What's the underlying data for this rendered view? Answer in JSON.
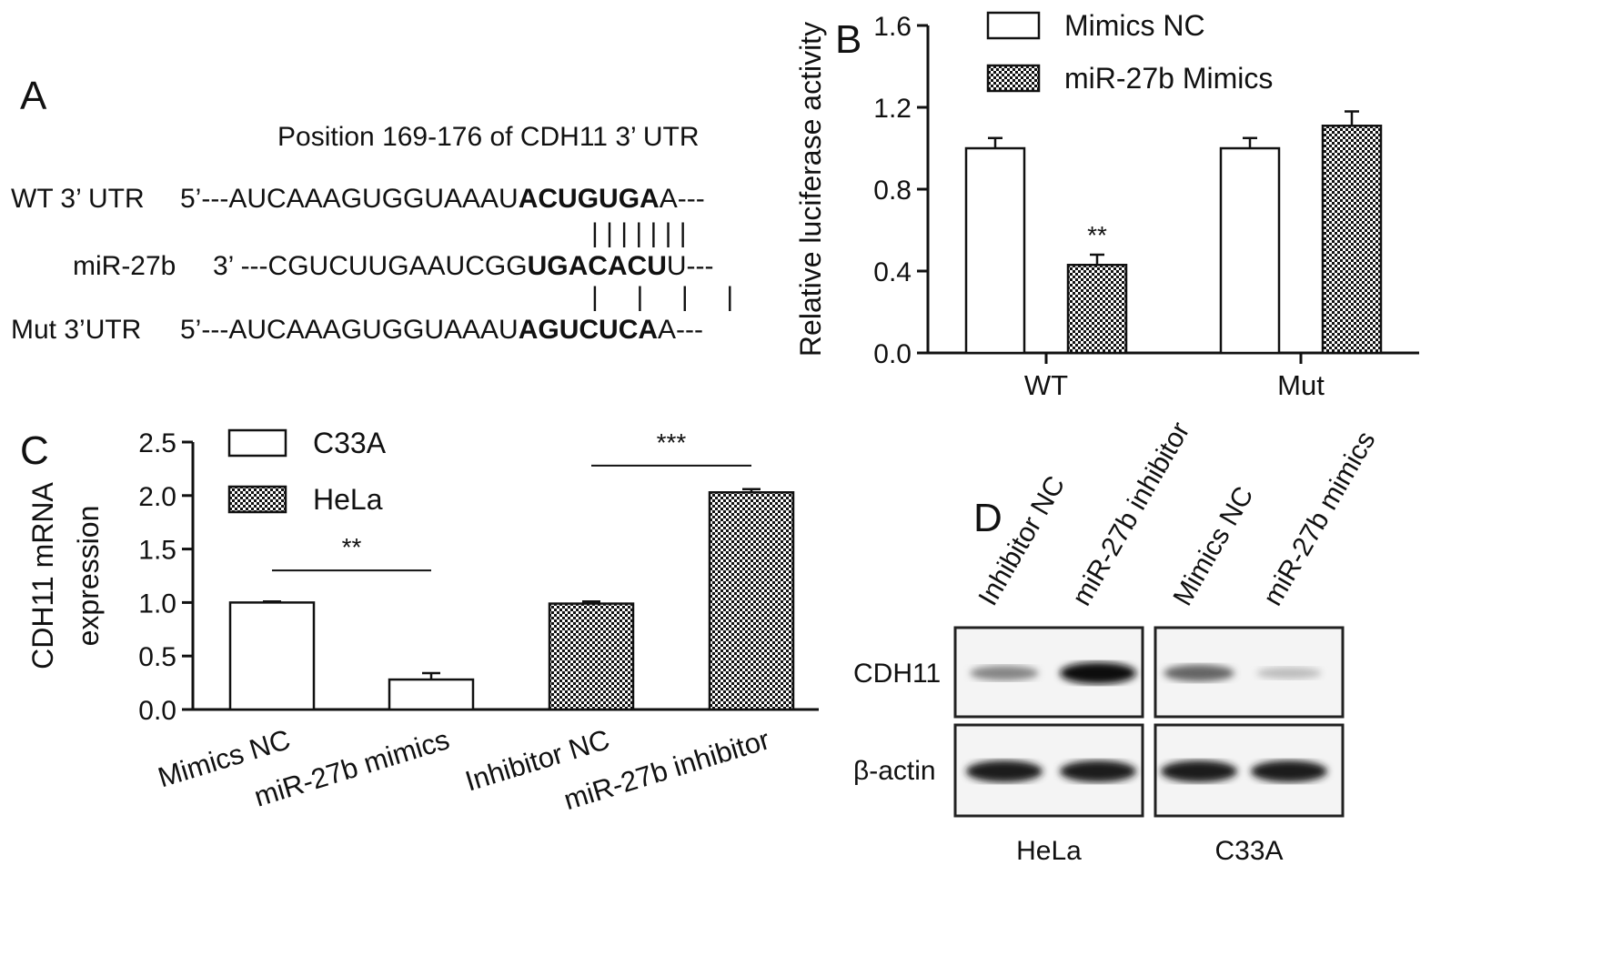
{
  "panel_a": {
    "label": "A",
    "title": "Position 169-176 of CDH11 3’ UTR",
    "rows": [
      {
        "label": "WT 3’ UTR",
        "prefix": "5’---AUCAAAGUGGUAAAU",
        "bold": "ACUGUGA",
        "suffix": "A---"
      },
      {
        "label": "miR-27b",
        "prefix": "3’ ---CGUCUUGAAUCGG",
        "bold": "UGACACU",
        "suffix": "U---"
      },
      {
        "label": "Mut 3’UTR",
        "prefix": "5’---AUCAAAGUGGUAAAU",
        "bold": "AGUCUCA",
        "suffix": "A---"
      }
    ],
    "pairing_top": "| | | | | | |",
    "pairing_bottom": "|     |     |     |"
  },
  "panel_b": {
    "label": "B"
  },
  "panel_c": {
    "label": "C"
  },
  "panel_d": {
    "label": "D",
    "lane_labels": [
      "Inhibitor NC",
      "miR-27b inhibitor",
      "Mimics NC",
      "miR-27b mimics"
    ],
    "row_labels": [
      "CDH11",
      "β-actin"
    ],
    "group_labels": [
      "HeLa",
      "C33A"
    ],
    "cdh11_band_intensity": [
      0.45,
      1.0,
      0.6,
      0.2
    ],
    "actin_band_intensity": [
      0.95,
      0.95,
      0.95,
      0.95
    ]
  },
  "chart_data": [
    {
      "type": "bar",
      "panel": "B",
      "ylabel": "Relative luciferase activity",
      "ylim": [
        0,
        1.6
      ],
      "yticks": [
        "0.0",
        "0.4",
        "0.8",
        "1.2",
        "1.6"
      ],
      "categories": [
        "WT",
        "Mut"
      ],
      "series": [
        {
          "name": "Mimics NC",
          "values": [
            1.0,
            1.0
          ],
          "errors": [
            0.05,
            0.05
          ],
          "pattern": "open"
        },
        {
          "name": "miR-27b Mimics",
          "values": [
            0.43,
            1.11
          ],
          "errors": [
            0.05,
            0.07
          ],
          "pattern": "checker"
        }
      ],
      "annotations": [
        {
          "text": "**",
          "category": "WT",
          "series": 1
        }
      ],
      "legend": "top"
    },
    {
      "type": "bar",
      "panel": "C",
      "ylabel": [
        "CDH11 mRNA",
        "expression"
      ],
      "ylim": [
        0,
        2.5
      ],
      "yticks": [
        "0.0",
        "0.5",
        "1.0",
        "1.5",
        "2.0",
        "2.5"
      ],
      "categories": [
        "Mimics NC",
        "miR-27b mimics",
        "Inhibitor NC",
        "miR-27b inhibitor"
      ],
      "values": [
        1.0,
        0.28,
        0.99,
        2.03
      ],
      "errors": [
        0.01,
        0.06,
        0.02,
        0.03
      ],
      "bar_series": [
        "C33A",
        "C33A",
        "HeLa",
        "HeLa"
      ],
      "legend_entries": [
        {
          "name": "C33A",
          "pattern": "open"
        },
        {
          "name": "HeLa",
          "pattern": "checker"
        }
      ],
      "brackets": [
        {
          "from": 0,
          "to": 1,
          "level": 1.3,
          "text": "**"
        },
        {
          "from": 2,
          "to": 3,
          "level": 2.28,
          "text": "***"
        }
      ],
      "legend": "top-left"
    }
  ]
}
